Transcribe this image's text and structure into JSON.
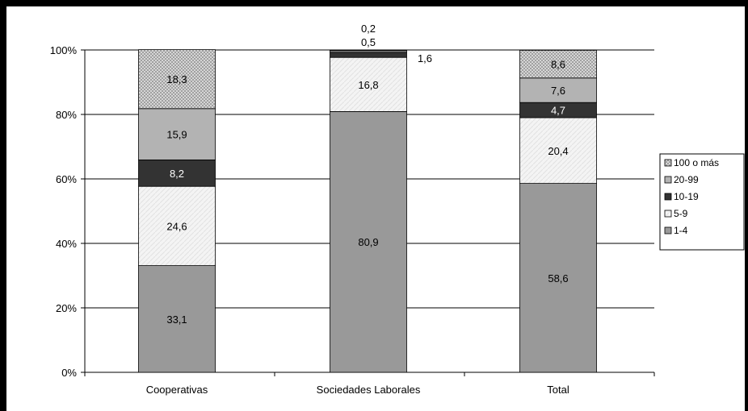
{
  "chart_data": {
    "type": "bar",
    "stacked": true,
    "percent": true,
    "categories": [
      "Cooperativas",
      "Sociedades Laborales",
      "Total"
    ],
    "series": [
      {
        "name": "1-4",
        "values": [
          33.1,
          80.9,
          58.6
        ],
        "labels": [
          "33,1",
          "80,9",
          "58,6"
        ],
        "color": "#999999",
        "pattern": "solid"
      },
      {
        "name": "5-9",
        "values": [
          24.6,
          16.8,
          20.4
        ],
        "labels": [
          "24,6",
          "16,8",
          "20,4"
        ],
        "color": "#f2f2f2",
        "pattern": "light"
      },
      {
        "name": "10-19",
        "values": [
          8.2,
          1.6,
          4.7
        ],
        "labels": [
          "8,2",
          "1,6",
          "4,7"
        ],
        "color": "#333333",
        "pattern": "solid"
      },
      {
        "name": "20-99",
        "values": [
          15.9,
          0.5,
          7.6
        ],
        "labels": [
          "15,9",
          "0,5",
          "7,6"
        ],
        "color": "#b3b3b3",
        "pattern": "solid"
      },
      {
        "name": "100 o más",
        "values": [
          18.3,
          0.2,
          8.6
        ],
        "labels": [
          "18,3",
          "0,2",
          "8,6"
        ],
        "color": "#c8c8c8",
        "pattern": "dots"
      }
    ],
    "ylim": [
      0,
      100
    ],
    "yticks": [
      "0%",
      "20%",
      "40%",
      "60%",
      "80%",
      "100%"
    ],
    "grid": true,
    "legend_position": "right",
    "title": "",
    "xlabel": "",
    "ylabel": ""
  }
}
